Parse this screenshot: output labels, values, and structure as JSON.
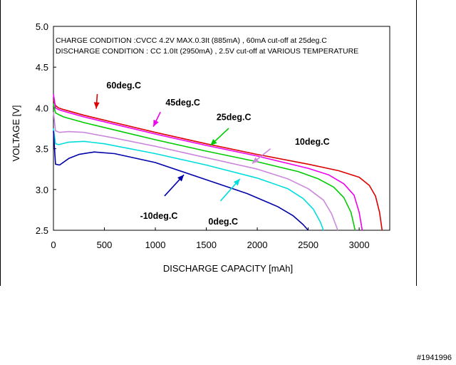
{
  "chart_data": {
    "type": "line",
    "xlabel": "DISCHARGE CAPACITY  [mAh]",
    "ylabel": "VOLTAGE  [V]",
    "xlim": [
      0,
      3300
    ],
    "ylim": [
      2.5,
      5.0
    ],
    "x_ticks": [
      "0",
      "500",
      "1000",
      "1500",
      "2000",
      "2500",
      "3000"
    ],
    "y_ticks": [
      "2.5",
      "3.0",
      "3.5",
      "4.0",
      "4.5",
      "5.0"
    ],
    "grid": false,
    "notes": [
      "CHARGE CONDITION :CVCC 4.2V MAX.0.3It (885mA) , 60mA cut-off at  25deg.C",
      "DISCHARGE CONDITION : CC 1.0It (2950mA) , 2.5V cut-off at  VARIOUS TEMPERATURE"
    ],
    "series": [
      {
        "name": "60deg.C",
        "color": "#dd0000",
        "x": [
          0,
          20,
          50,
          100,
          300,
          600,
          1000,
          1500,
          2000,
          2500,
          2800,
          3000,
          3100,
          3160,
          3200,
          3225
        ],
        "y": [
          4.1,
          4.03,
          4.0,
          3.98,
          3.91,
          3.82,
          3.7,
          3.56,
          3.43,
          3.31,
          3.23,
          3.15,
          3.05,
          2.92,
          2.72,
          2.5
        ]
      },
      {
        "name": "45deg.C",
        "color": "#ee00ee",
        "x": [
          0,
          20,
          50,
          100,
          300,
          600,
          1000,
          1500,
          2000,
          2500,
          2700,
          2850,
          2950,
          3000,
          3030
        ],
        "y": [
          4.17,
          4.0,
          3.98,
          3.96,
          3.89,
          3.8,
          3.68,
          3.54,
          3.41,
          3.26,
          3.18,
          3.07,
          2.93,
          2.72,
          2.5
        ]
      },
      {
        "name": "25deg.C",
        "color": "#00cc00",
        "x": [
          0,
          20,
          50,
          100,
          300,
          600,
          1000,
          1500,
          2000,
          2400,
          2600,
          2750,
          2850,
          2920,
          2960
        ],
        "y": [
          4.05,
          3.94,
          3.92,
          3.89,
          3.82,
          3.73,
          3.61,
          3.47,
          3.34,
          3.22,
          3.13,
          3.03,
          2.9,
          2.72,
          2.5
        ]
      },
      {
        "name": "10deg.C",
        "color": "#cc88dd",
        "x": [
          0,
          20,
          60,
          150,
          300,
          600,
          1000,
          1500,
          2000,
          2300,
          2500,
          2650,
          2730,
          2790
        ],
        "y": [
          3.95,
          3.72,
          3.7,
          3.71,
          3.7,
          3.63,
          3.53,
          3.39,
          3.25,
          3.13,
          3.01,
          2.87,
          2.7,
          2.5
        ]
      },
      {
        "name": "0deg.C",
        "color": "#00dddd",
        "x": [
          0,
          20,
          50,
          150,
          300,
          500,
          1000,
          1500,
          2000,
          2300,
          2450,
          2550,
          2620,
          2650
        ],
        "y": [
          3.75,
          3.56,
          3.55,
          3.58,
          3.59,
          3.56,
          3.44,
          3.3,
          3.14,
          3.01,
          2.89,
          2.76,
          2.6,
          2.5
        ]
      },
      {
        "name": "-10deg.C",
        "color": "#0000aa",
        "x": [
          0,
          20,
          60,
          150,
          250,
          400,
          600,
          1000,
          1500,
          1900,
          2200,
          2350,
          2450,
          2500
        ],
        "y": [
          3.72,
          3.31,
          3.3,
          3.38,
          3.43,
          3.46,
          3.44,
          3.33,
          3.12,
          2.95,
          2.79,
          2.68,
          2.57,
          2.5
        ]
      }
    ],
    "annotations": [
      {
        "label": "60deg.C",
        "series": "60deg.C",
        "text_x": 520,
        "text_y": 4.24,
        "arrow_from": [
          430,
          4.17
        ],
        "arrow_to": [
          420,
          3.99
        ]
      },
      {
        "label": "45deg.C",
        "series": "45deg.C",
        "text_x": 1100,
        "text_y": 4.03,
        "arrow_from": [
          1050,
          3.95
        ],
        "arrow_to": [
          980,
          3.77
        ]
      },
      {
        "label": "25deg.C",
        "series": "25deg.C",
        "text_x": 1600,
        "text_y": 3.85,
        "arrow_from": [
          1720,
          3.75
        ],
        "arrow_to": [
          1540,
          3.54
        ]
      },
      {
        "label": "10deg.C",
        "series": "10deg.C",
        "text_x": 2370,
        "text_y": 3.55,
        "arrow_from": [
          2130,
          3.5
        ],
        "arrow_to": [
          1950,
          3.32
        ]
      },
      {
        "label": "0deg.C",
        "series": "0deg.C",
        "text_x": 1520,
        "text_y": 2.57,
        "arrow_from": [
          1640,
          2.86
        ],
        "arrow_to": [
          1830,
          3.13
        ]
      },
      {
        "label": "-10deg.C",
        "series": "-10deg.C",
        "text_x": 850,
        "text_y": 2.64,
        "arrow_from": [
          1090,
          2.92
        ],
        "arrow_to": [
          1280,
          3.18
        ]
      }
    ]
  },
  "footer": {
    "stamp": "#1941996"
  }
}
